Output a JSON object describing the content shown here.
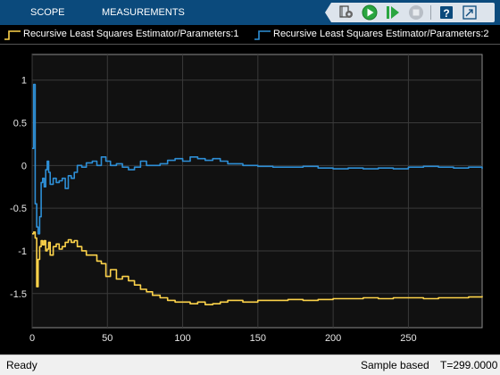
{
  "toolstrip": {
    "tabs": [
      {
        "label": "SCOPE"
      },
      {
        "label": "MEASUREMENTS"
      }
    ],
    "quick_access": [
      "undock-icon",
      "settings-icon",
      "run-icon",
      "step-forward-icon",
      "stop-icon",
      "help-icon",
      "expand-icon"
    ]
  },
  "legend": {
    "items": [
      {
        "label": "Recursive Least Squares Estimator/Parameters:1",
        "color": "#fdd34a"
      },
      {
        "label": "Recursive Least Squares Estimator/Parameters:2",
        "color": "#2e8fd6"
      }
    ]
  },
  "status": {
    "left": "Ready",
    "mode": "Sample based",
    "time": "T=299.0000"
  },
  "chart_data": {
    "type": "line",
    "title": "",
    "xlabel": "",
    "ylabel": "",
    "xlim": [
      0,
      299
    ],
    "ylim": [
      -1.9,
      1.3
    ],
    "xticks": [
      0,
      50,
      100,
      150,
      200,
      250
    ],
    "yticks": [
      1,
      0.5,
      0,
      -0.5,
      -1,
      -1.5
    ],
    "grid": true,
    "background": "#111111",
    "series": [
      {
        "name": "Recursive Least Squares Estimator/Parameters:1",
        "color": "#fdd34a",
        "x": [
          0,
          1,
          2,
          3,
          4,
          5,
          6,
          7,
          8,
          9,
          10,
          11,
          12,
          14,
          16,
          18,
          20,
          22,
          24,
          26,
          28,
          30,
          33,
          36,
          40,
          43,
          46,
          49,
          52,
          56,
          60,
          64,
          68,
          72,
          76,
          80,
          85,
          90,
          95,
          100,
          105,
          110,
          115,
          120,
          125,
          130,
          140,
          150,
          160,
          170,
          180,
          190,
          200,
          210,
          220,
          230,
          240,
          250,
          260,
          270,
          280,
          290,
          299
        ],
        "y": [
          -0.8,
          -0.78,
          -0.85,
          -1.42,
          -1.1,
          -0.95,
          -0.88,
          -0.93,
          -0.88,
          -1.0,
          -0.98,
          -0.9,
          -1.05,
          -0.95,
          -0.92,
          -0.98,
          -0.95,
          -0.9,
          -0.87,
          -0.9,
          -0.88,
          -0.95,
          -1.0,
          -1.05,
          -1.05,
          -1.12,
          -1.15,
          -1.3,
          -1.22,
          -1.33,
          -1.3,
          -1.35,
          -1.4,
          -1.45,
          -1.48,
          -1.52,
          -1.55,
          -1.58,
          -1.6,
          -1.6,
          -1.62,
          -1.6,
          -1.63,
          -1.62,
          -1.6,
          -1.58,
          -1.6,
          -1.58,
          -1.58,
          -1.57,
          -1.58,
          -1.57,
          -1.56,
          -1.56,
          -1.55,
          -1.56,
          -1.55,
          -1.55,
          -1.56,
          -1.55,
          -1.55,
          -1.54,
          -1.53
        ]
      },
      {
        "name": "Recursive Least Squares Estimator/Parameters:2",
        "color": "#2e8fd6",
        "x": [
          0,
          1,
          2,
          3,
          4,
          5,
          6,
          7,
          8,
          9,
          10,
          11,
          12,
          14,
          16,
          18,
          20,
          22,
          24,
          26,
          28,
          30,
          33,
          36,
          40,
          43,
          46,
          49,
          52,
          56,
          60,
          64,
          68,
          72,
          76,
          80,
          85,
          90,
          95,
          100,
          105,
          110,
          115,
          120,
          125,
          130,
          140,
          150,
          160,
          170,
          180,
          190,
          200,
          210,
          220,
          230,
          240,
          250,
          260,
          270,
          280,
          290,
          299
        ],
        "y": [
          0.2,
          0.95,
          -0.45,
          -0.72,
          -0.8,
          -0.6,
          -0.2,
          -0.15,
          -0.25,
          -0.05,
          0.05,
          -0.08,
          -0.22,
          -0.15,
          -0.2,
          -0.18,
          -0.15,
          -0.27,
          -0.12,
          -0.15,
          -0.08,
          0.0,
          -0.02,
          0.03,
          0.05,
          0.0,
          0.1,
          0.05,
          0.0,
          0.02,
          -0.02,
          -0.05,
          -0.02,
          0.05,
          0.0,
          0.0,
          0.02,
          0.06,
          0.08,
          0.05,
          0.1,
          0.08,
          0.06,
          0.08,
          0.05,
          0.02,
          0.0,
          -0.01,
          -0.02,
          -0.02,
          -0.01,
          -0.03,
          -0.04,
          -0.03,
          -0.04,
          -0.03,
          -0.04,
          -0.02,
          -0.01,
          -0.02,
          -0.03,
          -0.02,
          -0.04
        ]
      }
    ]
  }
}
